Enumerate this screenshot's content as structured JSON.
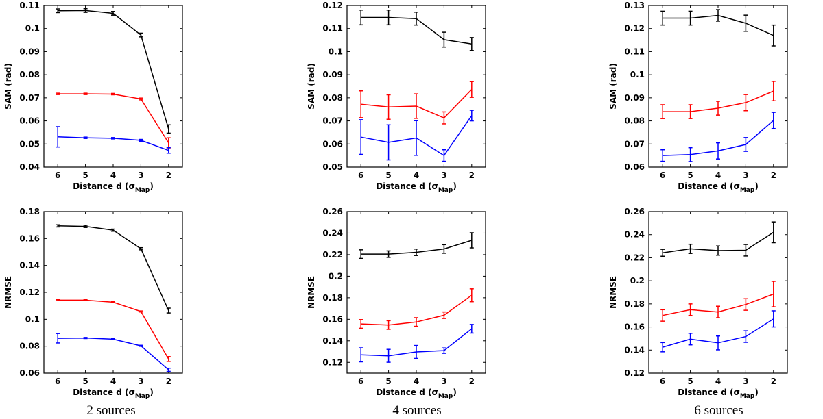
{
  "colors": {
    "black": "#000000",
    "red": "#ff0000",
    "blue": "#0000ff"
  },
  "columns": [
    {
      "caption": "2 sources"
    },
    {
      "caption": "4 sources"
    },
    {
      "caption": "6 sources"
    }
  ],
  "chart_data": [
    {
      "type": "line",
      "panel": "2 sources SAM",
      "xlabel": "Distance d (σ",
      "xlabel_sub": "Map",
      "xlabel_end": ")",
      "ylabel": "SAM (rad)",
      "x": [
        6,
        5,
        4,
        3,
        2
      ],
      "xlim": [
        6.5,
        1.5
      ],
      "x_reversed": true,
      "ylim": [
        0.04,
        0.11
      ],
      "yticks": [
        0.04,
        0.05,
        0.06,
        0.07,
        0.08,
        0.09,
        0.1,
        0.11
      ],
      "ytick_labels": [
        "0.04",
        "0.05",
        "0.06",
        "0.07",
        "0.08",
        "0.09",
        "0.1",
        "0.11"
      ],
      "series": [
        {
          "name": "black",
          "color": "#000000",
          "values": [
            0.1077,
            0.1078,
            0.1066,
            0.0972,
            0.0565
          ],
          "errors": [
            0.0008,
            0.0008,
            0.0008,
            0.0008,
            0.0018
          ]
        },
        {
          "name": "red",
          "color": "#ff0000",
          "values": [
            0.0717,
            0.0717,
            0.0716,
            0.0695,
            0.0505
          ],
          "errors": [
            0.0003,
            0.0003,
            0.0003,
            0.0004,
            0.0022
          ]
        },
        {
          "name": "blue",
          "color": "#0000ff",
          "values": [
            0.0531,
            0.0527,
            0.0525,
            0.0516,
            0.0472
          ],
          "errors": [
            0.0044,
            0.0003,
            0.0003,
            0.0004,
            0.0012
          ]
        }
      ]
    },
    {
      "type": "line",
      "panel": "4 sources SAM",
      "xlabel": "Distance d (σ",
      "xlabel_sub": "Map",
      "xlabel_end": ")",
      "ylabel": "SAM (rad)",
      "x": [
        6,
        5,
        4,
        3,
        2
      ],
      "xlim": [
        6.5,
        1.5
      ],
      "x_reversed": true,
      "ylim": [
        0.05,
        0.12
      ],
      "yticks": [
        0.05,
        0.06,
        0.07,
        0.08,
        0.09,
        0.1,
        0.11,
        0.12
      ],
      "ytick_labels": [
        "0.05",
        "0.06",
        "0.07",
        "0.08",
        "0.09",
        "0.1",
        "0.11",
        "0.12"
      ],
      "series": [
        {
          "name": "black",
          "color": "#000000",
          "values": [
            0.1148,
            0.1148,
            0.1143,
            0.1052,
            0.1033
          ],
          "errors": [
            0.0032,
            0.0032,
            0.0028,
            0.0032,
            0.0028
          ]
        },
        {
          "name": "red",
          "color": "#ff0000",
          "values": [
            0.0772,
            0.076,
            0.0764,
            0.0713,
            0.0836
          ],
          "errors": [
            0.0058,
            0.0053,
            0.0053,
            0.0026,
            0.0034
          ]
        },
        {
          "name": "blue",
          "color": "#0000ff",
          "values": [
            0.063,
            0.0607,
            0.0626,
            0.055,
            0.0723
          ],
          "errors": [
            0.0075,
            0.0076,
            0.0075,
            0.0025,
            0.0023
          ]
        }
      ]
    },
    {
      "type": "line",
      "panel": "6 sources SAM",
      "xlabel": "Distance d (σ",
      "xlabel_sub": "Map",
      "xlabel_end": ")",
      "ylabel": "SAM (rad)",
      "x": [
        6,
        5,
        4,
        3,
        2
      ],
      "xlim": [
        6.5,
        1.5
      ],
      "x_reversed": true,
      "ylim": [
        0.06,
        0.13
      ],
      "yticks": [
        0.06,
        0.07,
        0.08,
        0.09,
        0.1,
        0.11,
        0.12,
        0.13
      ],
      "ytick_labels": [
        "0.06",
        "0.07",
        "0.08",
        "0.09",
        "0.1",
        "0.11",
        "0.12",
        "0.13"
      ],
      "series": [
        {
          "name": "black",
          "color": "#000000",
          "values": [
            0.1245,
            0.1245,
            0.1257,
            0.1223,
            0.117
          ],
          "errors": [
            0.003,
            0.003,
            0.0025,
            0.0035,
            0.0045
          ]
        },
        {
          "name": "red",
          "color": "#ff0000",
          "values": [
            0.084,
            0.084,
            0.0855,
            0.0879,
            0.0929
          ],
          "errors": [
            0.003,
            0.003,
            0.003,
            0.0035,
            0.0042
          ]
        },
        {
          "name": "blue",
          "color": "#0000ff",
          "values": [
            0.065,
            0.0654,
            0.067,
            0.0698,
            0.0802
          ],
          "errors": [
            0.0025,
            0.003,
            0.0035,
            0.003,
            0.0035
          ]
        }
      ]
    },
    {
      "type": "line",
      "panel": "2 sources NRMSE",
      "xlabel": "Distance d (σ",
      "xlabel_sub": "Map",
      "xlabel_end": ")",
      "ylabel": "NRMSE",
      "x": [
        6,
        5,
        4,
        3,
        2
      ],
      "xlim": [
        6.5,
        1.5
      ],
      "x_reversed": true,
      "ylim": [
        0.06,
        0.18
      ],
      "yticks": [
        0.06,
        0.08,
        0.1,
        0.12,
        0.14,
        0.16,
        0.18
      ],
      "ytick_labels": [
        "0.06",
        "0.08",
        "0.1",
        "0.12",
        "0.14",
        "0.16",
        "0.18"
      ],
      "series": [
        {
          "name": "black",
          "color": "#000000",
          "values": [
            0.1694,
            0.169,
            0.1662,
            0.1524,
            0.1065
          ],
          "errors": [
            0.0008,
            0.0008,
            0.0008,
            0.0008,
            0.0018
          ]
        },
        {
          "name": "red",
          "color": "#ff0000",
          "values": [
            0.1142,
            0.1142,
            0.1127,
            0.1058,
            0.0705
          ],
          "errors": [
            0.0004,
            0.0004,
            0.0004,
            0.0004,
            0.0018
          ]
        },
        {
          "name": "blue",
          "color": "#0000ff",
          "values": [
            0.0859,
            0.0861,
            0.0852,
            0.0803,
            0.0625
          ],
          "errors": [
            0.0035,
            0.0004,
            0.0004,
            0.0004,
            0.0012
          ]
        }
      ]
    },
    {
      "type": "line",
      "panel": "4 sources NRMSE",
      "xlabel": "Distance d (σ",
      "xlabel_sub": "Map",
      "xlabel_end": ")",
      "ylabel": "NRMSE",
      "x": [
        6,
        5,
        4,
        3,
        2
      ],
      "xlim": [
        6.5,
        1.5
      ],
      "x_reversed": true,
      "ylim": [
        0.11,
        0.26
      ],
      "yticks": [
        0.12,
        0.14,
        0.16,
        0.18,
        0.2,
        0.22,
        0.24,
        0.26
      ],
      "ytick_labels": [
        "0.12",
        "0.14",
        "0.16",
        "0.18",
        "0.2",
        "0.22",
        "0.24",
        "0.26"
      ],
      "series": [
        {
          "name": "black",
          "color": "#000000",
          "values": [
            0.2205,
            0.2205,
            0.2222,
            0.2253,
            0.2333
          ],
          "errors": [
            0.004,
            0.003,
            0.003,
            0.004,
            0.007
          ]
        },
        {
          "name": "red",
          "color": "#ff0000",
          "values": [
            0.1557,
            0.1547,
            0.1575,
            0.1638,
            0.1823
          ],
          "errors": [
            0.004,
            0.004,
            0.004,
            0.003,
            0.006
          ]
        },
        {
          "name": "blue",
          "color": "#0000ff",
          "values": [
            0.127,
            0.1261,
            0.1297,
            0.1309,
            0.1512
          ],
          "errors": [
            0.0065,
            0.006,
            0.006,
            0.0025,
            0.004
          ]
        }
      ]
    },
    {
      "type": "line",
      "panel": "6 sources NRMSE",
      "xlabel": "Distance d (σ",
      "xlabel_sub": "Map",
      "xlabel_end": ")",
      "ylabel": "NRMSE",
      "x": [
        6,
        5,
        4,
        3,
        2
      ],
      "xlim": [
        6.5,
        1.5
      ],
      "x_reversed": true,
      "ylim": [
        0.12,
        0.26
      ],
      "yticks": [
        0.12,
        0.14,
        0.16,
        0.18,
        0.2,
        0.22,
        0.24,
        0.26
      ],
      "ytick_labels": [
        "0.12",
        "0.14",
        "0.16",
        "0.18",
        "0.2",
        "0.22",
        "0.24",
        "0.26"
      ],
      "series": [
        {
          "name": "black",
          "color": "#000000",
          "values": [
            0.2243,
            0.2277,
            0.2262,
            0.2265,
            0.242
          ],
          "errors": [
            0.003,
            0.004,
            0.004,
            0.005,
            0.009
          ]
        },
        {
          "name": "red",
          "color": "#ff0000",
          "values": [
            0.17,
            0.175,
            0.173,
            0.1795,
            0.1885
          ],
          "errors": [
            0.005,
            0.005,
            0.005,
            0.005,
            0.011
          ]
        },
        {
          "name": "blue",
          "color": "#0000ff",
          "values": [
            0.1425,
            0.1495,
            0.1462,
            0.1517,
            0.167
          ],
          "errors": [
            0.004,
            0.005,
            0.006,
            0.005,
            0.007
          ]
        }
      ]
    }
  ]
}
